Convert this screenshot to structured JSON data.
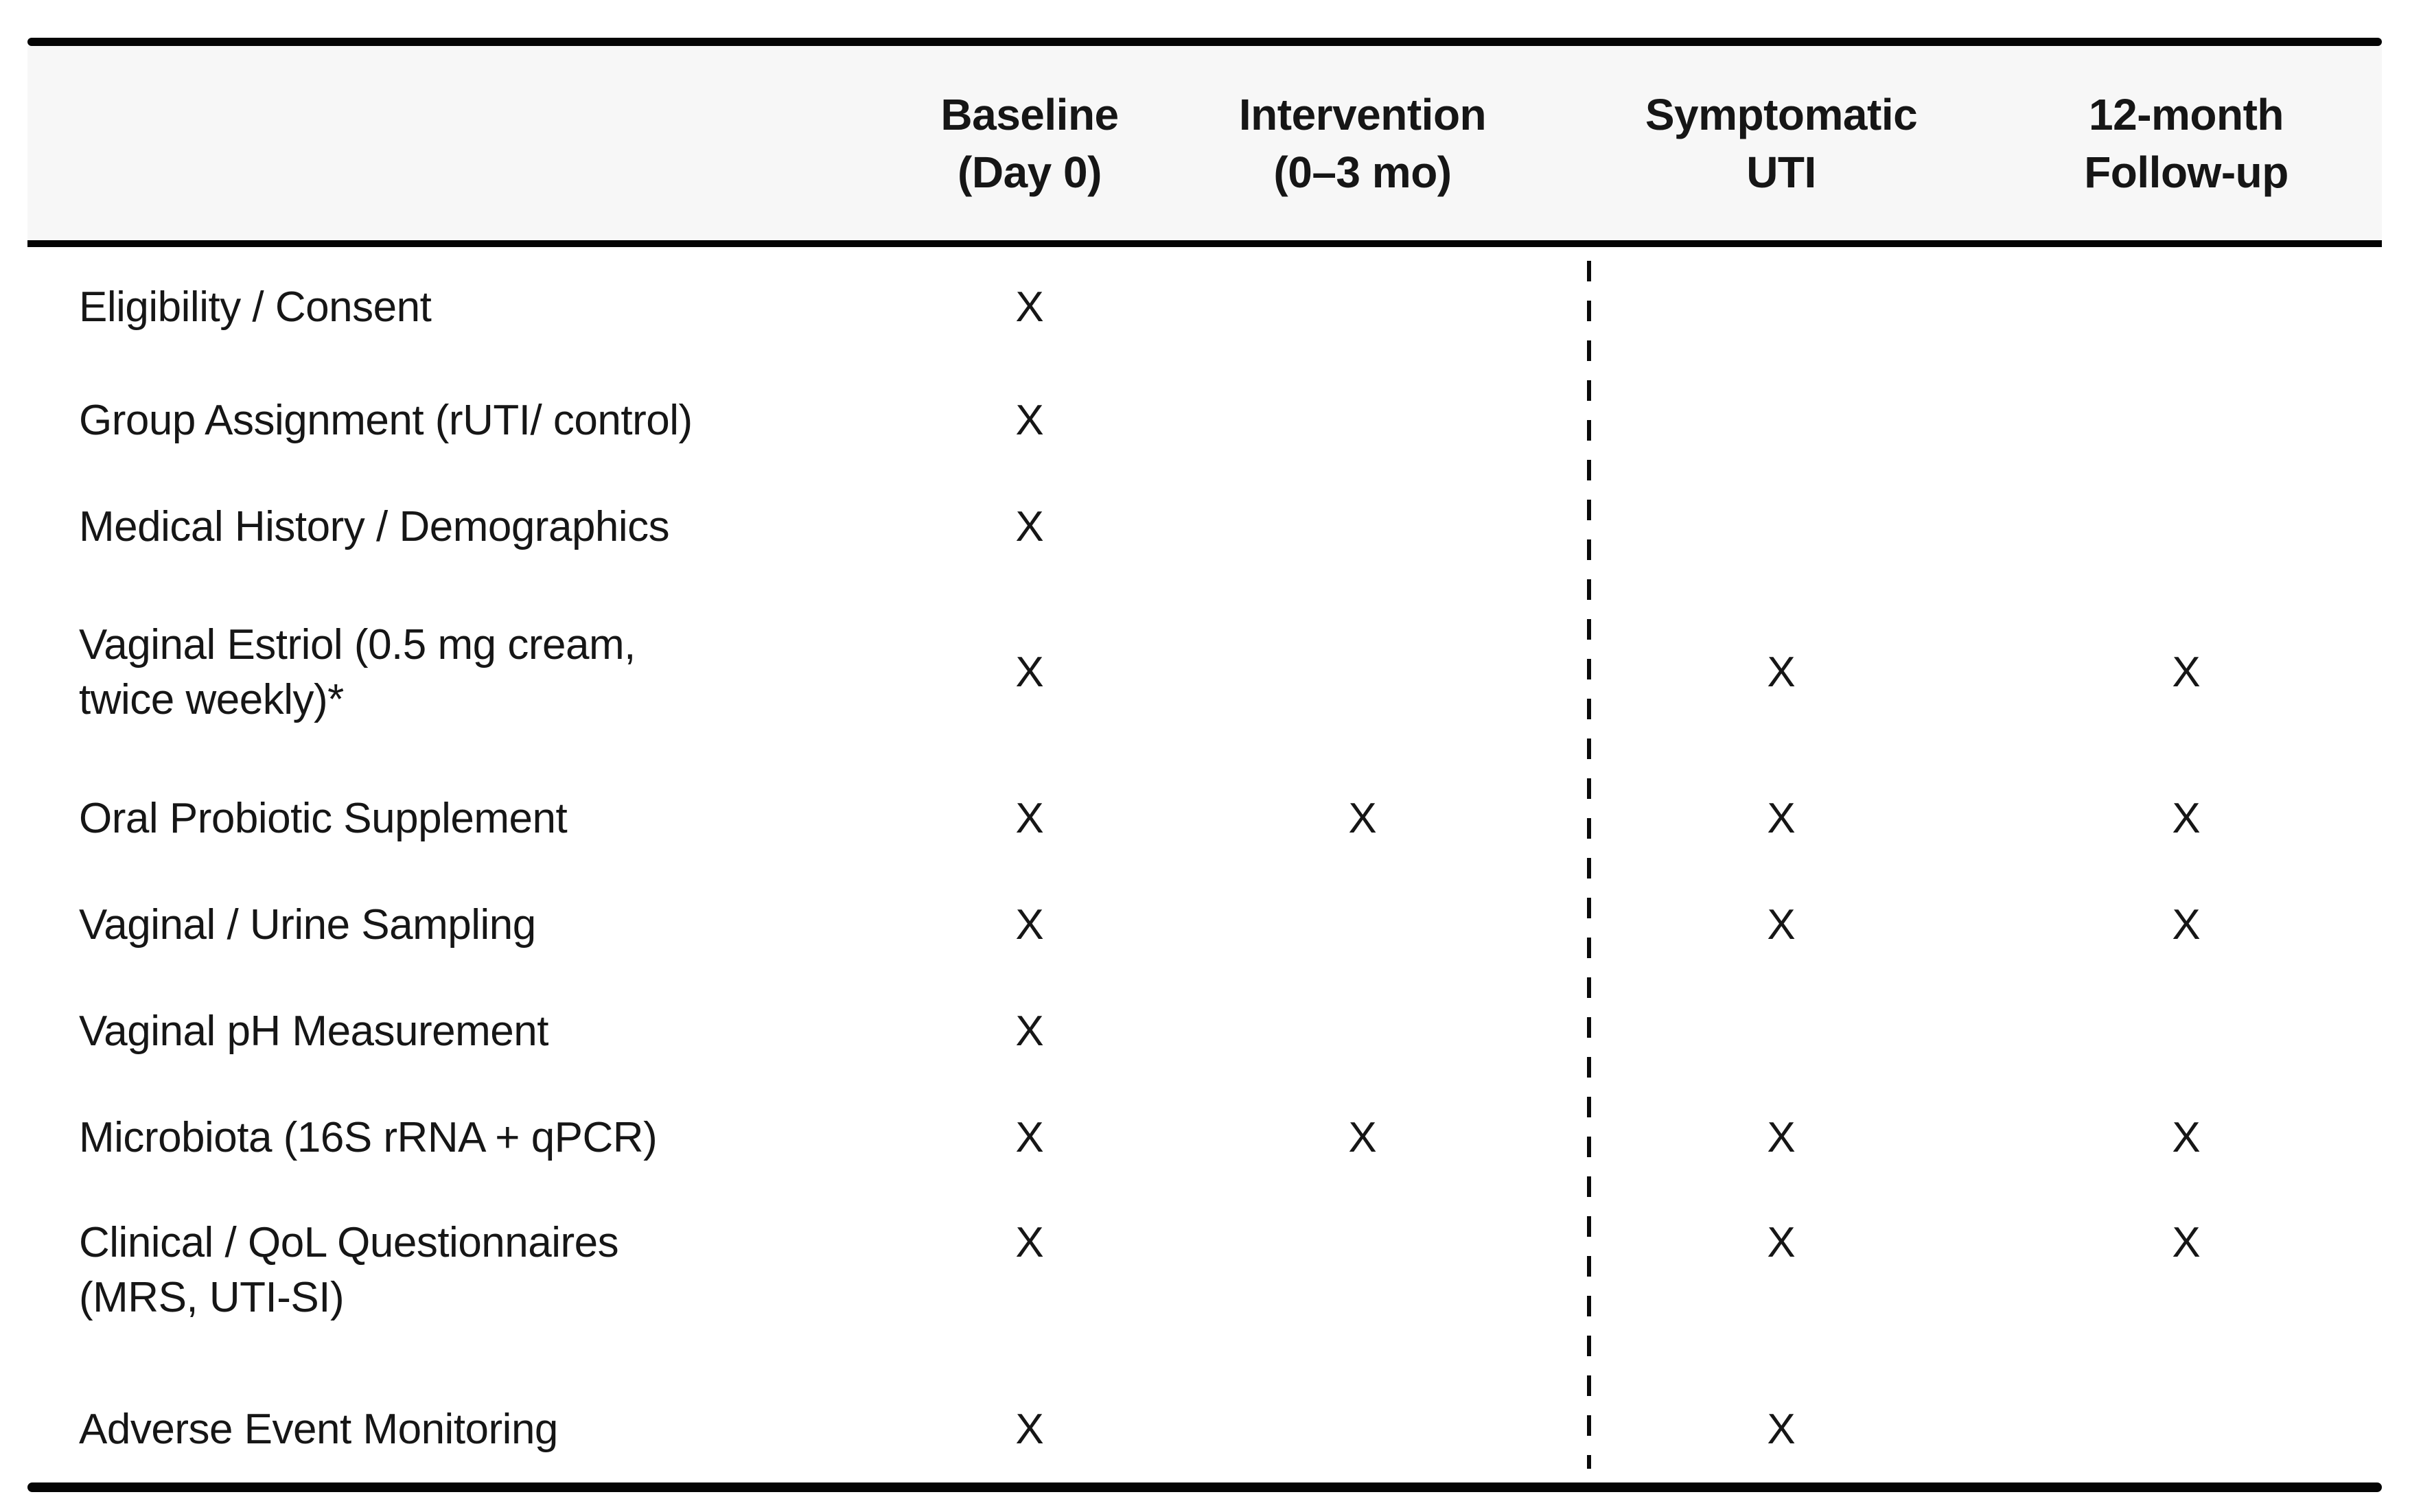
{
  "table": {
    "colors": {
      "header_bg": "#f7f7f7",
      "border": "#050505",
      "text": "#161616"
    },
    "mark": "X",
    "columns": [
      {
        "line1": "Baseline",
        "line2": "(Day 0)"
      },
      {
        "line1": "Intervention",
        "line2": "(0–3 mo)"
      },
      {
        "line1": "Symptomatic",
        "line2": "UTI"
      },
      {
        "line1": "12-month",
        "line2": "Follow-up"
      }
    ],
    "rows": [
      {
        "label": "Eligibility / Consent",
        "cells": [
          "X",
          "",
          "",
          ""
        ],
        "tall": false,
        "valign": "center"
      },
      {
        "label": "Group Assignment (rUTI/ control)",
        "cells": [
          "X",
          "",
          "",
          ""
        ],
        "tall": false,
        "valign": "center"
      },
      {
        "label": "Medical History / Demographics",
        "cells": [
          "X",
          "",
          "",
          ""
        ],
        "tall": false,
        "valign": "center"
      },
      {
        "label": "Vaginal Estriol (0.5 mg cream,\ntwice weekly)*",
        "cells": [
          "X",
          "",
          "X",
          "X"
        ],
        "tall": true,
        "valign": "center"
      },
      {
        "label": "Oral Probiotic Supplement",
        "cells": [
          "X",
          "X",
          "X",
          "X"
        ],
        "tall": false,
        "valign": "center"
      },
      {
        "label": "Vaginal / Urine Sampling",
        "cells": [
          "X",
          "",
          "X",
          "X"
        ],
        "tall": false,
        "valign": "center"
      },
      {
        "label": "Vaginal pH Measurement",
        "cells": [
          "X",
          "",
          "",
          ""
        ],
        "tall": false,
        "valign": "center"
      },
      {
        "label": "Microbiota (16S rRNA + qPCR)",
        "cells": [
          "X",
          "X",
          "X",
          "X"
        ],
        "tall": false,
        "valign": "center"
      },
      {
        "label": "Clinical / QoL Questionnaires\n(MRS, UTI-SI)",
        "cells": [
          "X",
          "",
          "X",
          "X"
        ],
        "tall": true,
        "valign": "top"
      },
      {
        "label": "Adverse Event Monitoring",
        "cells": [
          "X",
          "",
          "X",
          ""
        ],
        "tall": false,
        "valign": "center"
      }
    ]
  }
}
